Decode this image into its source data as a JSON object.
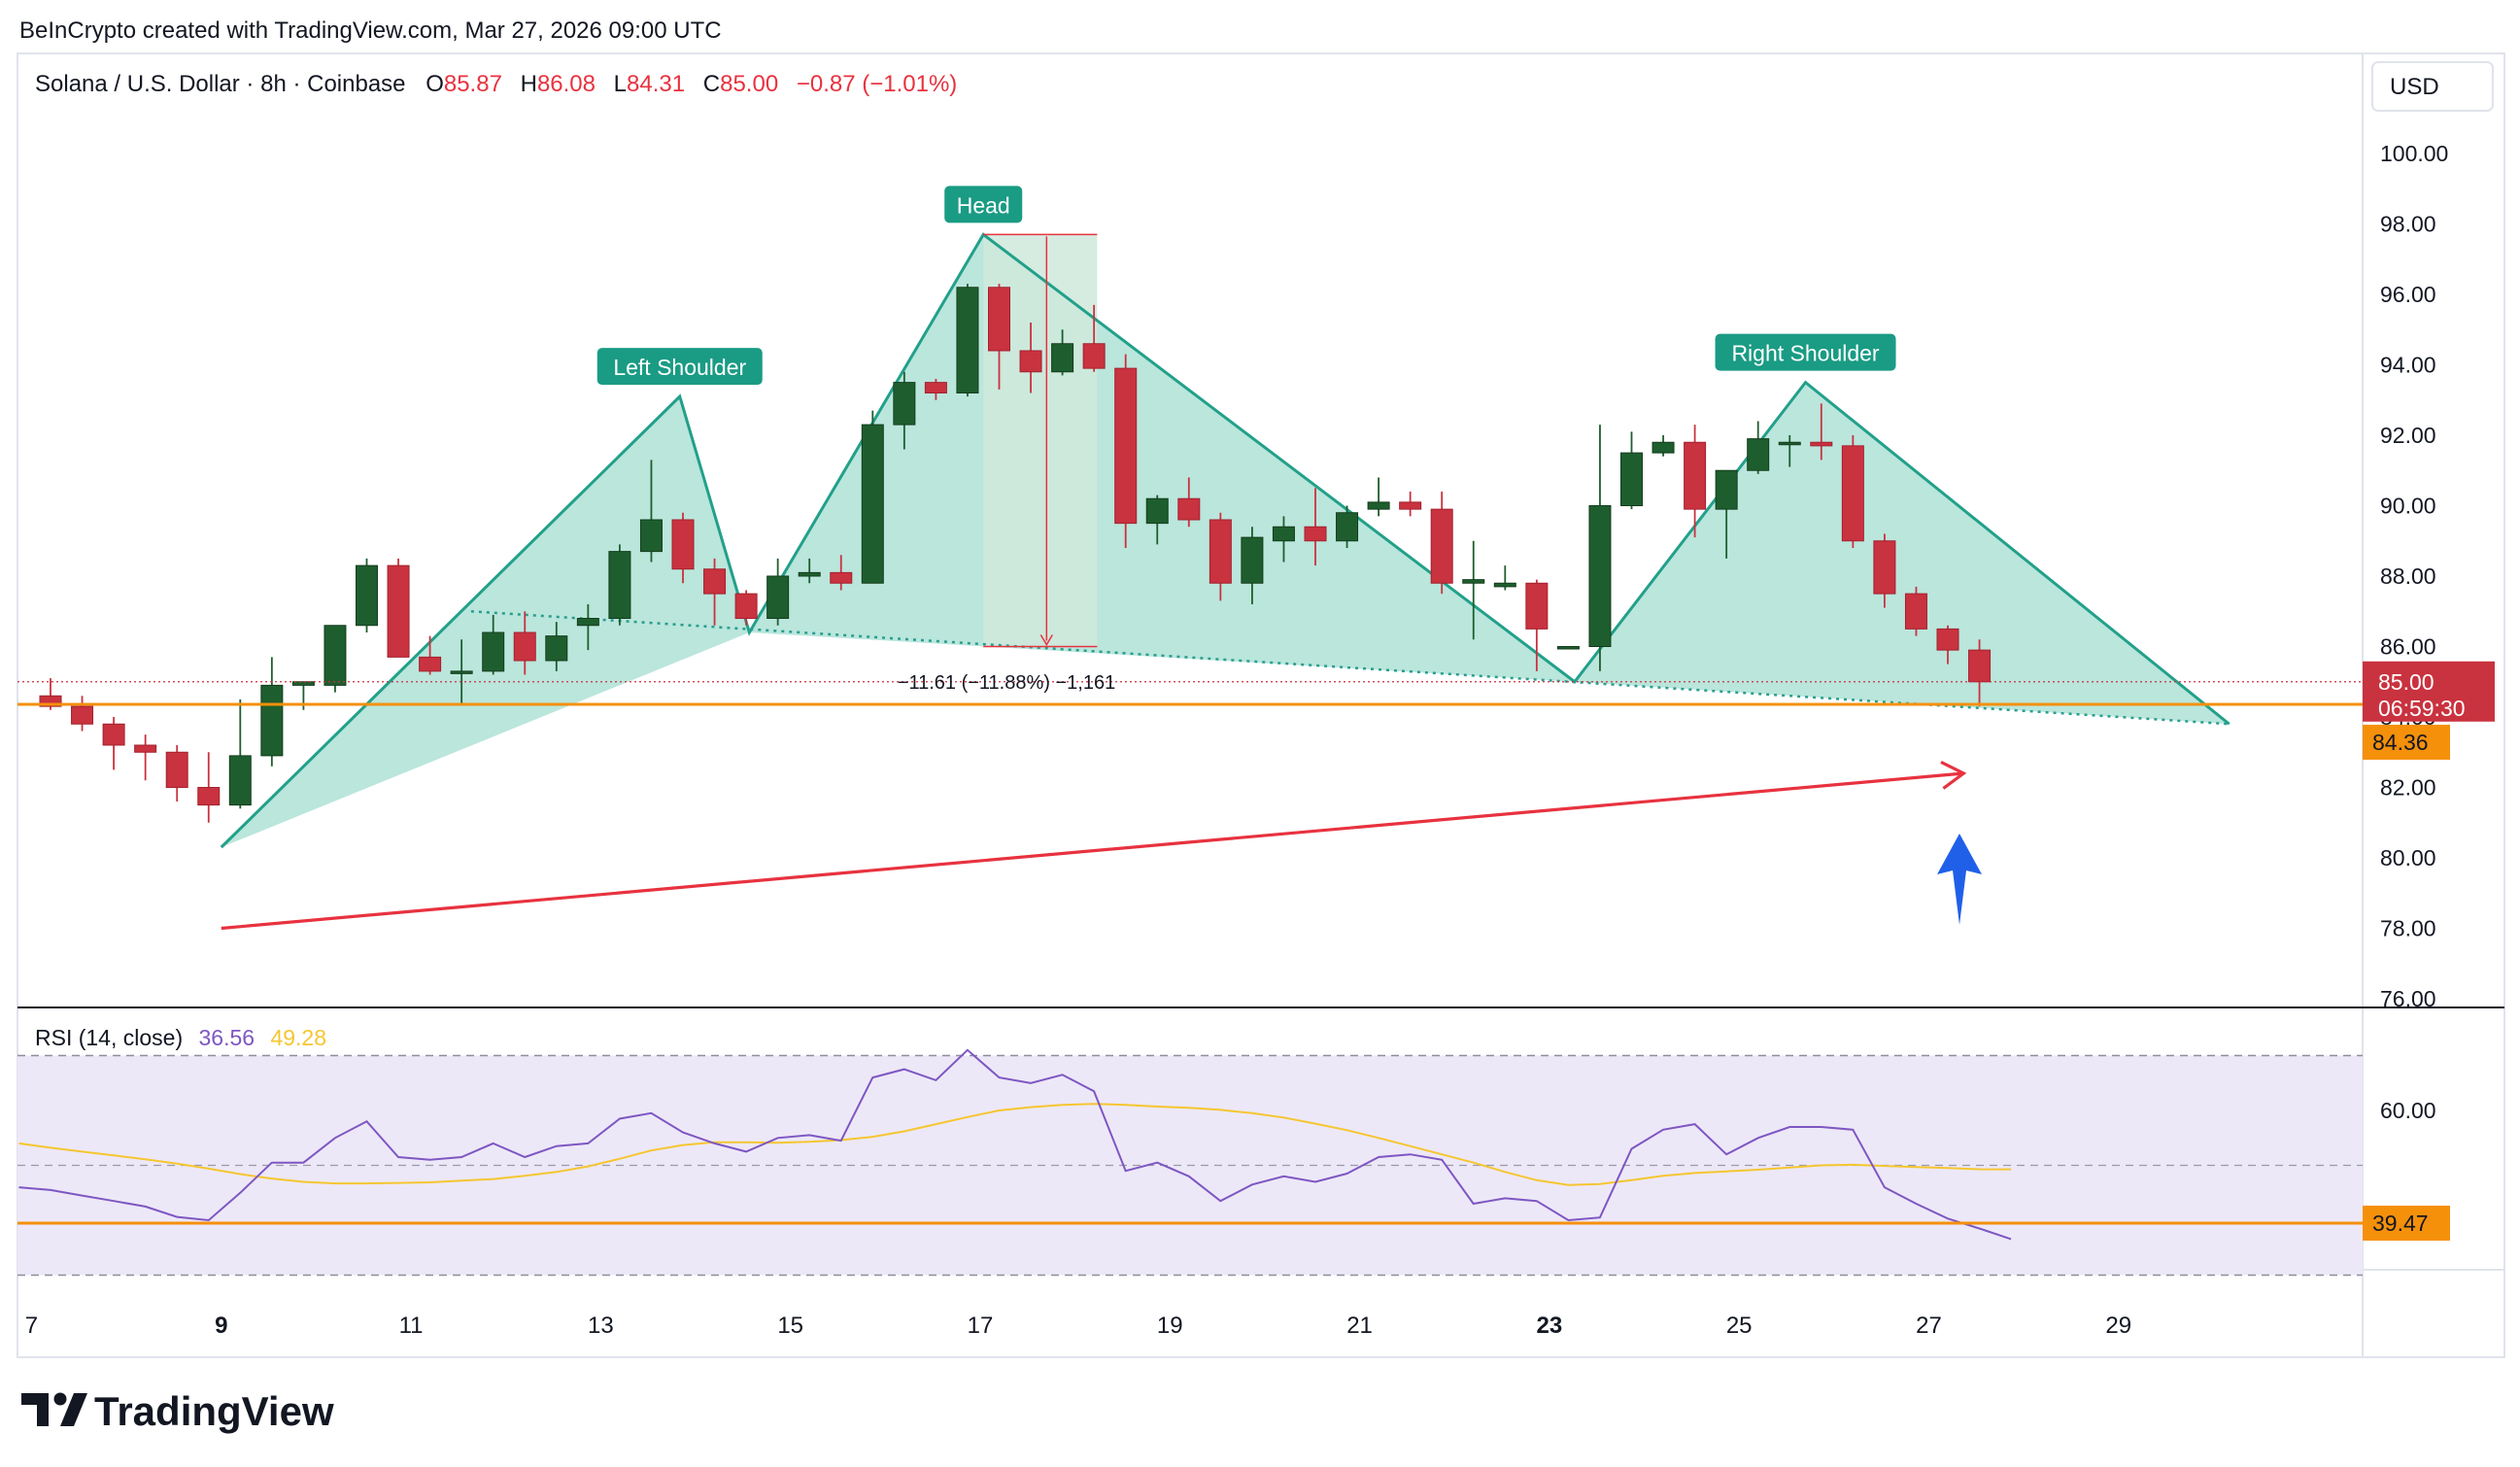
{
  "header": {
    "credit": "BeInCrypto created with TradingView.com, Mar 27, 2026 09:00 UTC"
  },
  "legend": {
    "symbol": "Solana / U.S. Dollar · 8h · Coinbase",
    "o_label": "O",
    "o_value": "85.87",
    "h_label": "H",
    "h_value": "86.08",
    "l_label": "L",
    "l_value": "84.31",
    "c_label": "C",
    "c_value": "85.00",
    "change": "−0.87 (−1.01%)"
  },
  "currency_button": "USD",
  "footer": {
    "brand": "TradingView"
  },
  "colors": {
    "up": "#1e5e2e",
    "down": "#c9323f",
    "pattern_fill": "#b6e5da",
    "pattern_line": "#22a08a",
    "support": "#f5900b",
    "arrow_red": "#e8323f",
    "arrow_blue": "#2060e8",
    "rsi_line": "#7e57c2",
    "rsi_ma": "#f5c630",
    "rsi_band": "#ede8f8"
  },
  "chart_data": [
    {
      "type": "candlestick",
      "title": "Solana / U.S. Dollar · 8h · Coinbase",
      "y_ticks": [
        "100.00",
        "98.00",
        "96.00",
        "94.00",
        "92.00",
        "90.00",
        "88.00",
        "86.00",
        "84.00",
        "82.00",
        "80.00",
        "78.00",
        "76.00"
      ],
      "ylim": [
        76,
        101
      ],
      "x_ticks": [
        {
          "label": "7",
          "bold": false
        },
        {
          "label": "9",
          "bold": true
        },
        {
          "label": "11",
          "bold": false
        },
        {
          "label": "13",
          "bold": false
        },
        {
          "label": "15",
          "bold": false
        },
        {
          "label": "17",
          "bold": false
        },
        {
          "label": "19",
          "bold": false
        },
        {
          "label": "21",
          "bold": false
        },
        {
          "label": "23",
          "bold": true
        },
        {
          "label": "25",
          "bold": false
        },
        {
          "label": "27",
          "bold": false
        },
        {
          "label": "29",
          "bold": false
        }
      ],
      "candles": [
        [
          84.6,
          85.1,
          84.2,
          84.3
        ],
        [
          84.3,
          84.6,
          83.6,
          83.8
        ],
        [
          83.8,
          84.0,
          82.5,
          83.2
        ],
        [
          83.2,
          83.5,
          82.2,
          83.0
        ],
        [
          83.0,
          83.2,
          81.6,
          82.0
        ],
        [
          82.0,
          83.0,
          81.0,
          81.5
        ],
        [
          81.5,
          84.5,
          81.4,
          82.9
        ],
        [
          82.9,
          85.7,
          82.6,
          84.9
        ],
        [
          84.9,
          85.0,
          84.2,
          85.0
        ],
        [
          84.9,
          86.6,
          84.7,
          86.6
        ],
        [
          86.6,
          88.5,
          86.4,
          88.3
        ],
        [
          88.3,
          88.5,
          85.7,
          85.7
        ],
        [
          85.7,
          86.3,
          85.2,
          85.3
        ],
        [
          85.3,
          86.2,
          84.4,
          85.3
        ],
        [
          85.3,
          86.9,
          85.2,
          86.4
        ],
        [
          86.4,
          87.0,
          85.2,
          85.6
        ],
        [
          85.6,
          86.7,
          85.3,
          86.3
        ],
        [
          86.6,
          87.2,
          85.9,
          86.8
        ],
        [
          86.8,
          88.9,
          86.6,
          88.7
        ],
        [
          88.7,
          91.3,
          88.4,
          89.6
        ],
        [
          89.6,
          89.8,
          87.8,
          88.2
        ],
        [
          88.2,
          88.5,
          86.6,
          87.5
        ],
        [
          87.5,
          87.6,
          86.6,
          86.8
        ],
        [
          86.8,
          88.5,
          86.6,
          88.0
        ],
        [
          88.0,
          88.5,
          87.8,
          88.1
        ],
        [
          88.1,
          88.6,
          87.6,
          87.8
        ],
        [
          87.8,
          92.7,
          87.8,
          92.3
        ],
        [
          92.3,
          93.8,
          91.6,
          93.5
        ],
        [
          93.5,
          93.6,
          93.0,
          93.2
        ],
        [
          93.2,
          96.3,
          93.1,
          96.2
        ],
        [
          96.2,
          96.3,
          93.3,
          94.4
        ],
        [
          94.4,
          95.2,
          93.2,
          93.8
        ],
        [
          93.8,
          95.0,
          93.7,
          94.6
        ],
        [
          94.6,
          95.7,
          93.8,
          93.9
        ],
        [
          93.9,
          94.3,
          88.8,
          89.5
        ],
        [
          89.5,
          90.3,
          88.9,
          90.2
        ],
        [
          90.2,
          90.8,
          89.4,
          89.6
        ],
        [
          89.6,
          89.8,
          87.3,
          87.8
        ],
        [
          87.8,
          89.4,
          87.2,
          89.1
        ],
        [
          89.0,
          89.7,
          88.4,
          89.4
        ],
        [
          89.4,
          90.5,
          88.3,
          89.0
        ],
        [
          89.0,
          90.0,
          88.8,
          89.8
        ],
        [
          89.9,
          90.8,
          89.7,
          90.1
        ],
        [
          90.1,
          90.4,
          89.7,
          89.9
        ],
        [
          89.9,
          90.4,
          87.5,
          87.8
        ],
        [
          87.8,
          89.0,
          86.2,
          87.9
        ],
        [
          87.7,
          88.3,
          87.6,
          87.8
        ],
        [
          87.8,
          87.9,
          85.3,
          86.5
        ],
        [
          86.0,
          86.0,
          86.0,
          86.0
        ],
        [
          86.0,
          92.3,
          85.3,
          90.0
        ],
        [
          90.0,
          92.1,
          89.9,
          91.5
        ],
        [
          91.5,
          92.0,
          91.4,
          91.8
        ],
        [
          91.8,
          92.3,
          89.1,
          89.9
        ],
        [
          89.9,
          91.0,
          88.5,
          91.0
        ],
        [
          91.0,
          92.4,
          90.9,
          91.9
        ],
        [
          91.8,
          92.0,
          91.1,
          91.8
        ],
        [
          91.8,
          92.9,
          91.3,
          91.7
        ],
        [
          91.7,
          92.0,
          88.8,
          89.0
        ],
        [
          89.0,
          89.2,
          87.1,
          87.5
        ],
        [
          87.5,
          87.7,
          86.3,
          86.5
        ],
        [
          86.5,
          86.6,
          85.5,
          85.9
        ],
        [
          85.9,
          86.2,
          84.3,
          85.0
        ]
      ],
      "support_level": 84.36,
      "support_label": "84.36",
      "last_price_label": "85.00",
      "countdown_label": "06:59:30",
      "measurement_label": "−11.61 (−11.88%) −1,161",
      "pattern": {
        "name": "Head and Shoulders",
        "labels": [
          "Left Shoulder",
          "Head",
          "Right Shoulder"
        ],
        "points": [
          {
            "index": 5.4,
            "price": 80.3
          },
          {
            "index": 19.9,
            "price": 93.1
          },
          {
            "index": 22.1,
            "price": 86.4
          },
          {
            "index": 29.5,
            "price": 97.7
          },
          {
            "index": 48.2,
            "price": 85.0
          },
          {
            "index": 55.5,
            "price": 93.5
          },
          {
            "index": 68.9,
            "price": 83.8
          }
        ],
        "neckline": [
          {
            "index": 13.3,
            "price": 87.0
          },
          {
            "index": 68.9,
            "price": 83.8
          }
        ]
      },
      "trend_arrow": [
        {
          "index": 5.4,
          "price": 78.0
        },
        {
          "index": 60.5,
          "price": 82.4
        }
      ]
    },
    {
      "type": "line",
      "title": "RSI (14, close)",
      "rsi_label": "RSI (14, close)",
      "rsi_value": "36.56",
      "ma_value": "49.28",
      "y_ticks": [
        "60.00"
      ],
      "ylim": [
        26,
        75
      ],
      "band": [
        30,
        70
      ],
      "midline": 50,
      "level_label": "39.47",
      "level": 39.47,
      "series": [
        {
          "name": "RSI",
          "values": [
            46,
            45.5,
            44.5,
            43.5,
            42.5,
            40.6,
            40,
            45,
            50.5,
            50.5,
            55,
            58,
            51.5,
            51,
            51.5,
            54,
            51.5,
            53.5,
            54,
            58.5,
            59.5,
            56,
            54,
            52.5,
            55,
            55.5,
            54.5,
            66,
            67.5,
            65.5,
            71,
            66,
            65,
            66.5,
            63.5,
            49,
            50.5,
            48,
            43.5,
            46.5,
            48,
            47,
            48.5,
            51.5,
            52,
            51,
            43,
            44,
            43.5,
            40,
            40.5,
            53,
            56.5,
            57.5,
            52,
            55,
            57,
            57,
            56.5,
            46,
            43,
            40.3,
            38.5,
            36.56
          ]
        },
        {
          "name": "MA",
          "values": [
            54,
            53.2,
            52.5,
            51.8,
            51.1,
            50.3,
            49.4,
            48.4,
            47.6,
            47,
            46.7,
            46.7,
            46.8,
            46.9,
            47.2,
            47.5,
            48.1,
            48.8,
            49.8,
            51.2,
            52.7,
            53.7,
            54.2,
            54.2,
            54.1,
            54.3,
            54.6,
            55.2,
            56.2,
            57.5,
            58.8,
            60.0,
            60.6,
            61.0,
            61.2,
            61.0,
            60.7,
            60.5,
            60.1,
            59.5,
            58.7,
            57.6,
            56.4,
            55.0,
            53.5,
            52.0,
            50.5,
            48.8,
            47.3,
            46.4,
            46.6,
            47.3,
            48.1,
            48.6,
            48.9,
            49.2,
            49.6,
            50.0,
            50.1,
            49.9,
            49.7,
            49.5,
            49.3,
            49.28
          ]
        }
      ]
    }
  ]
}
